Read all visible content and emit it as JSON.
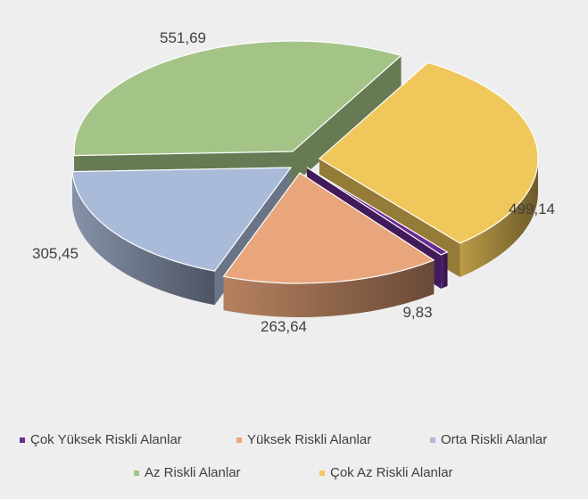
{
  "chart_data": {
    "type": "pie",
    "title": "",
    "categories": [
      "Çok Yüksek Riskli Alanlar",
      "Yüksek Riskli Alanlar",
      "Orta Riskli Alanlar",
      "Az Riskli Alanlar",
      "Çok Az Riskli Alanlar"
    ],
    "values": [
      9.83,
      263.64,
      305.45,
      551.69,
      499.14
    ],
    "value_labels": [
      "9,83",
      "263,64",
      "305,45",
      "551,69",
      "499,14"
    ],
    "colors": [
      "#6a2c91",
      "#e9a57b",
      "#aabbd9",
      "#a4c487",
      "#f0c75a"
    ],
    "style": "3d exploded pie",
    "legend_position": "bottom"
  },
  "legend": {
    "items": [
      {
        "label": "Çok Yüksek Riskli Alanlar",
        "color": "#6a2c91"
      },
      {
        "label": "Yüksek Riskli Alanlar",
        "color": "#e9a57b"
      },
      {
        "label": "Orta Riskli Alanlar",
        "color": "#aabbd9"
      },
      {
        "label": "Az Riskli Alanlar",
        "color": "#a4c487"
      },
      {
        "label": "Çok Az Riskli Alanlar",
        "color": "#f0c75a"
      }
    ]
  }
}
